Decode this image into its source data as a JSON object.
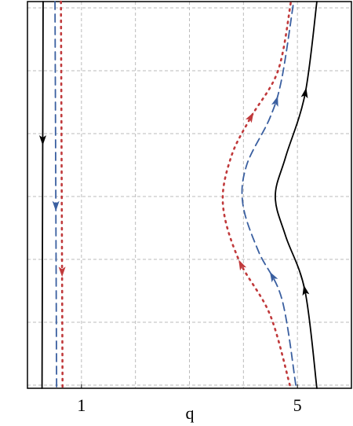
{
  "chart_data": {
    "type": "line",
    "xlabel": "q",
    "xlim": [
      0,
      6
    ],
    "xticks": [
      1,
      5
    ],
    "xgrid": [
      1,
      2,
      3,
      4,
      5
    ],
    "ylim": [
      -0.05,
      6.1
    ],
    "ygrid": [
      0,
      1,
      2,
      3,
      4,
      5,
      6
    ],
    "grid": true,
    "series": [
      {
        "color": "#000000",
        "style": "solid",
        "x": [
          0.29,
          0.27
        ],
        "values": [
          6.1,
          -0.05
        ]
      },
      {
        "color": "#3a5fa0",
        "style": "dashed",
        "x": [
          0.51,
          0.54
        ],
        "values": [
          6.1,
          -0.05
        ]
      },
      {
        "color": "#c0393b",
        "style": "dotted",
        "x": [
          0.62,
          0.65
        ],
        "values": [
          6.1,
          -0.05
        ]
      },
      {
        "color": "#000000",
        "style": "solid",
        "x": [
          5.36,
          5.14,
          4.78,
          4.59,
          4.78,
          5.14,
          5.36
        ],
        "values": [
          -0.05,
          1.5,
          2.375,
          3,
          3.625,
          4.625,
          6.1
        ]
      },
      {
        "color": "#3a5fa0",
        "style": "dashed",
        "x": [
          4.97,
          4.71,
          4.28,
          3.99,
          4.06,
          4.49,
          4.71,
          4.93
        ],
        "values": [
          0,
          1.375,
          2.125,
          2.875,
          3.5,
          4.25,
          4.875,
          6.1
        ]
      },
      {
        "color": "#c0393b",
        "style": "dotted",
        "x": [
          4.86,
          4.49,
          3.91,
          3.62,
          3.77,
          4.13,
          4.64,
          4.88
        ],
        "values": [
          0,
          1.125,
          2,
          2.875,
          3.625,
          4.25,
          5,
          6.1
        ]
      }
    ]
  }
}
